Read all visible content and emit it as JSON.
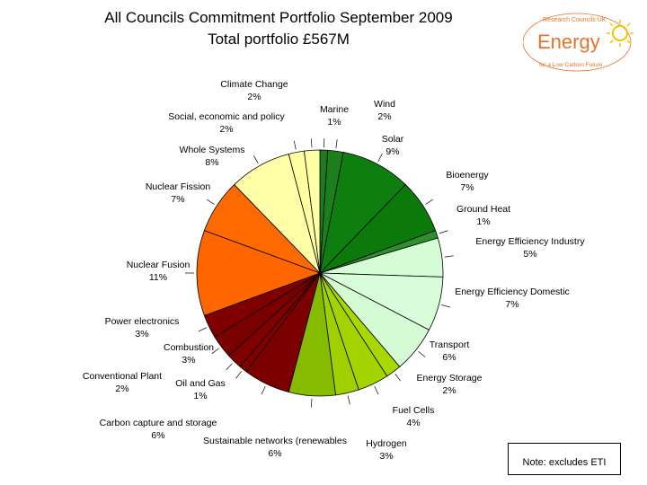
{
  "title": {
    "line1": "All Councils Commitment Portfolio September 2009",
    "line2": "Total portfolio £567M"
  },
  "logo": {
    "top_text": "Research Councils UK",
    "word": "Energy",
    "bottom_text": "for a Low Carbon Future",
    "colors": {
      "orange": "#E8722A",
      "sun": "#F2C500"
    }
  },
  "note": "Note: excludes ETI",
  "chart_data": {
    "type": "pie",
    "slices": [
      {
        "name": "Marine",
        "pct": "1%",
        "value": 1,
        "color": "#1E7A1E"
      },
      {
        "name": "Wind",
        "pct": "2%",
        "value": 2,
        "color": "#1B7F1B"
      },
      {
        "name": "Solar",
        "pct": "9%",
        "value": 9,
        "color": "#0E7F0E"
      },
      {
        "name": "Bioenergy",
        "pct": "7%",
        "value": 7,
        "color": "#0B7A0B"
      },
      {
        "name": "Ground Heat",
        "pct": "1%",
        "value": 1,
        "color": "#2E8F2E"
      },
      {
        "name": "Energy Efficiency Industry",
        "pct": "5%",
        "value": 5,
        "color": "#D6FCD6"
      },
      {
        "name": "Energy Efficiency Domestic",
        "pct": "7%",
        "value": 7,
        "color": "#D8FDD8"
      },
      {
        "name": "Transport",
        "pct": "6%",
        "value": 6,
        "color": "#D4FBD4"
      },
      {
        "name": "Energy Storage",
        "pct": "2%",
        "value": 2,
        "color": "#A8D800"
      },
      {
        "name": "Fuel Cells",
        "pct": "4%",
        "value": 4,
        "color": "#A4D400"
      },
      {
        "name": "Hydrogen",
        "pct": "3%",
        "value": 3,
        "color": "#A0D000"
      },
      {
        "name": "Sustainable networks (renewables",
        "pct": "6%",
        "value": 6,
        "color": "#86BC00"
      },
      {
        "name": "Carbon capture and storage",
        "pct": "6%",
        "value": 6,
        "color": "#7C0000"
      },
      {
        "name": "Oil and Gas",
        "pct": "1%",
        "value": 1,
        "color": "#800000"
      },
      {
        "name": "Conventional Plant",
        "pct": "2%",
        "value": 2,
        "color": "#800000"
      },
      {
        "name": "Combustion",
        "pct": "3%",
        "value": 3,
        "color": "#7A0000"
      },
      {
        "name": "Power electronics",
        "pct": "3%",
        "value": 3,
        "color": "#800000"
      },
      {
        "name": "Nuclear Fusion",
        "pct": "11%",
        "value": 11,
        "color": "#FF6600"
      },
      {
        "name": "Nuclear Fission",
        "pct": "7%",
        "value": 7,
        "color": "#FF6A00"
      },
      {
        "name": "Whole Systems",
        "pct": "8%",
        "value": 8,
        "color": "#FFFFA8"
      },
      {
        "name": "Social, economic and policy",
        "pct": "2%",
        "value": 2,
        "color": "#FFFFA0"
      },
      {
        "name": "Climate Change",
        "pct": "2%",
        "value": 2,
        "color": "#FFFFA4"
      }
    ]
  }
}
